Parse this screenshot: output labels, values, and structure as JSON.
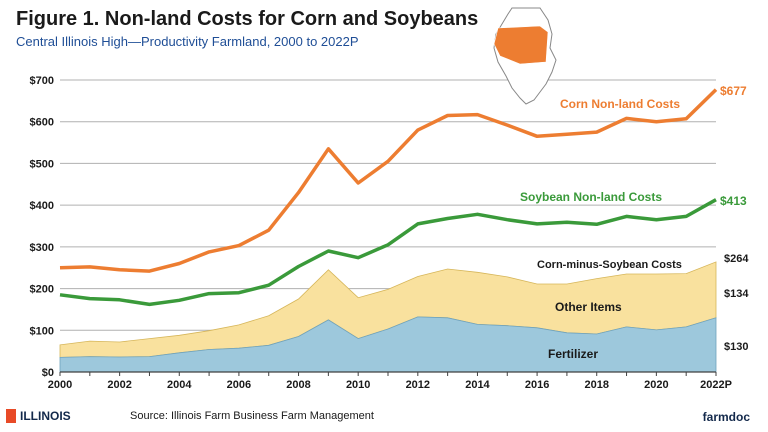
{
  "title": "Figure 1.  Non-land Costs for Corn and Soybeans",
  "subtitle": "Central Illinois High—Productivity Farmland, 2000 to 2022P",
  "source": "Source:  Illinois Farm Business Farm Management",
  "logo_text": "ILLINOIS",
  "brand_text": "farmdoc",
  "colors": {
    "corn": "#ed7d31",
    "soybean": "#3a9a3a",
    "other_items": "#f9e19e",
    "fertilizer": "#9dc8dc",
    "corn_label": "#ed7d31",
    "soy_label": "#3a9a3a"
  },
  "chart_data": {
    "type": "area",
    "x": [
      2000,
      2001,
      2002,
      2003,
      2004,
      2005,
      2006,
      2007,
      2008,
      2009,
      2010,
      2011,
      2012,
      2013,
      2014,
      2015,
      2016,
      2017,
      2018,
      2019,
      2020,
      2021,
      2022
    ],
    "xlim": [
      2000,
      2022
    ],
    "ylim": [
      0,
      700
    ],
    "yticks": [
      0,
      100,
      200,
      300,
      400,
      500,
      600,
      700
    ],
    "ytick_labels": [
      "$0",
      "$100",
      "$200",
      "$300",
      "$400",
      "$500",
      "$600",
      "$700"
    ],
    "xticks": [
      2000,
      2002,
      2004,
      2006,
      2008,
      2010,
      2012,
      2014,
      2016,
      2018,
      2020,
      2022
    ],
    "xtick_labels": [
      "2000",
      "2002",
      "2004",
      "2006",
      "2008",
      "2010",
      "2012",
      "2014",
      "2016",
      "2018",
      "2020",
      "2022P"
    ],
    "grid": true,
    "series": [
      {
        "name": "Corn Non-land Costs",
        "kind": "line",
        "values": [
          250,
          252,
          245,
          242,
          260,
          288,
          303,
          340,
          430,
          535,
          453,
          505,
          580,
          615,
          617,
          592,
          565,
          570,
          575,
          608,
          600,
          607,
          677
        ]
      },
      {
        "name": "Soybean Non-land Costs",
        "kind": "line",
        "values": [
          185,
          176,
          173,
          162,
          172,
          188,
          190,
          208,
          253,
          290,
          274,
          305,
          355,
          368,
          378,
          365,
          355,
          359,
          354,
          373,
          365,
          373,
          413
        ]
      },
      {
        "name": "Fertilizer",
        "kind": "area",
        "values": [
          35,
          37,
          36,
          37,
          46,
          54,
          57,
          64,
          85,
          125,
          80,
          103,
          132,
          130,
          114,
          111,
          106,
          94,
          91,
          108,
          101,
          108,
          130
        ]
      },
      {
        "name": "Other Items",
        "kind": "area",
        "values": [
          30,
          37,
          36,
          43,
          42,
          45,
          56,
          71,
          90,
          120,
          98,
          95,
          97,
          117,
          125,
          117,
          105,
          117,
          133,
          127,
          134,
          128,
          134
        ]
      }
    ],
    "annotations": {
      "corn_end": "$677",
      "soy_end": "$413",
      "total_end": "$264",
      "other_end": "$134",
      "fert_end": "$130",
      "corn_minus_soy": "Corn-minus-Soybean Costs"
    }
  }
}
